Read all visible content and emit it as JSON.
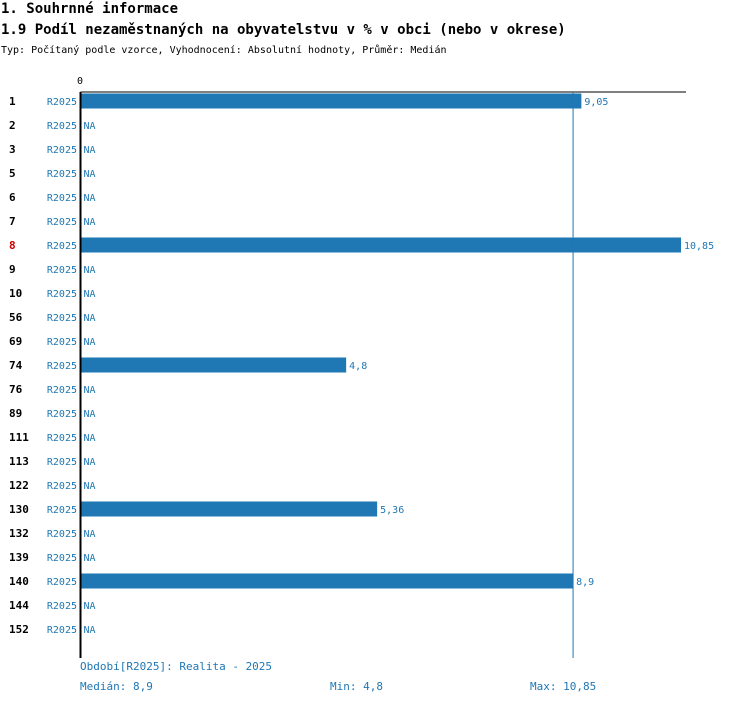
{
  "header": {
    "section": "1. Souhrnné informace",
    "title": "1.9 Podíl nezaměstnaných na obyvatelstvu v % v obci (nebo v okrese)",
    "meta": "Typ: Počítaný podle vzorce, Vyhodnocení: Absolutní hodnoty, Průměr: Medián"
  },
  "colors": {
    "bar": "#1f77b4",
    "highlight_label": "#cc0000",
    "text": "#000000"
  },
  "chart_data": {
    "type": "bar",
    "orientation": "horizontal",
    "axis_zero_label": "0",
    "xlim": [
      0,
      10.85
    ],
    "median": 8.9,
    "highlight_category": "8",
    "categories": [
      "1",
      "2",
      "3",
      "5",
      "6",
      "7",
      "8",
      "9",
      "10",
      "56",
      "69",
      "74",
      "76",
      "89",
      "111",
      "113",
      "122",
      "130",
      "132",
      "139",
      "140",
      "144",
      "152"
    ],
    "series_label": "R2025",
    "values": [
      9.05,
      null,
      null,
      null,
      null,
      null,
      10.85,
      null,
      null,
      null,
      null,
      4.8,
      null,
      null,
      null,
      null,
      null,
      5.36,
      null,
      null,
      8.9,
      null,
      null
    ],
    "value_labels": [
      "9,05",
      "NA",
      "NA",
      "NA",
      "NA",
      "NA",
      "10,85",
      "NA",
      "NA",
      "NA",
      "NA",
      "4,8",
      "NA",
      "NA",
      "NA",
      "NA",
      "NA",
      "5,36",
      "NA",
      "NA",
      "8,9",
      "NA",
      "NA"
    ]
  },
  "footer": {
    "period": "Období[R2025]: Realita - 2025",
    "median": "Medián: 8,9",
    "min": "Min: 4,8",
    "max": "Max: 10,85"
  }
}
